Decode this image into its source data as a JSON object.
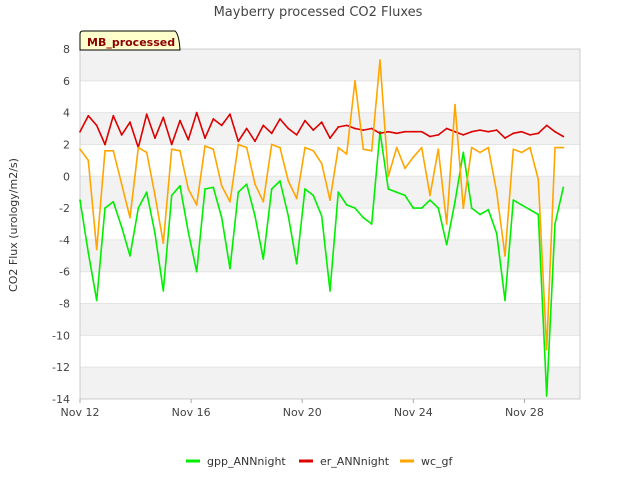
{
  "chart_data": {
    "type": "line",
    "title": "Mayberry processed CO2 Fluxes",
    "xlabel": "",
    "ylabel": "CO2 Flux (urology/m2/s)",
    "tag_label": "MB_processed",
    "xlim": [
      12,
      30
    ],
    "ylim": [
      -14,
      8
    ],
    "x_ticks": [
      {
        "value": 12,
        "label": "Nov 12"
      },
      {
        "value": 16,
        "label": "Nov 16"
      },
      {
        "value": 20,
        "label": "Nov 20"
      },
      {
        "value": 24,
        "label": "Nov 24"
      },
      {
        "value": 28,
        "label": "Nov 28"
      }
    ],
    "y_ticks": [
      8,
      6,
      4,
      2,
      0,
      -2,
      -4,
      -6,
      -8,
      -10,
      -12,
      -14
    ],
    "grid": "horizontal alternating bands",
    "legend_position": "bottom",
    "series": [
      {
        "name": "gpp_ANNnight",
        "color": "#00ee00",
        "x": [
          12.0,
          12.3,
          12.6,
          12.9,
          13.2,
          13.5,
          13.8,
          14.1,
          14.4,
          14.7,
          15.0,
          15.3,
          15.6,
          15.9,
          16.2,
          16.5,
          16.8,
          17.1,
          17.4,
          17.7,
          18.0,
          18.3,
          18.6,
          18.9,
          19.2,
          19.5,
          19.8,
          20.1,
          20.4,
          20.7,
          21.0,
          21.3,
          21.6,
          21.9,
          22.2,
          22.5,
          22.8,
          23.1,
          23.4,
          23.7,
          24.0,
          24.3,
          24.6,
          24.9,
          25.2,
          25.5,
          25.8,
          26.1,
          26.4,
          26.7,
          27.0,
          27.3,
          27.6,
          27.9,
          28.2,
          28.5,
          28.8,
          29.1,
          29.4
        ],
        "y": [
          -1.5,
          -4.8,
          -7.8,
          -2.0,
          -1.6,
          -3.2,
          -5.0,
          -2.0,
          -1.0,
          -3.6,
          -7.2,
          -1.2,
          -0.6,
          -3.5,
          -6.0,
          -0.8,
          -0.7,
          -2.6,
          -5.8,
          -1.0,
          -0.5,
          -2.5,
          -5.2,
          -0.8,
          -0.3,
          -2.5,
          -5.5,
          -0.8,
          -1.2,
          -2.5,
          -7.2,
          -1.0,
          -1.8,
          -2.0,
          -2.6,
          -3.0,
          2.8,
          -0.8,
          -1.0,
          -1.2,
          -2.0,
          -2.0,
          -1.5,
          -2.0,
          -4.3,
          -1.6,
          1.5,
          -2.0,
          -2.4,
          -2.1,
          -3.6,
          -7.8,
          -1.5,
          -1.8,
          -2.1,
          -2.4,
          -13.8,
          -3.0,
          -0.7
        ]
      },
      {
        "name": "er_ANNnight",
        "color": "#dd0000",
        "x": [
          12.0,
          12.3,
          12.6,
          12.9,
          13.2,
          13.5,
          13.8,
          14.1,
          14.4,
          14.7,
          15.0,
          15.3,
          15.6,
          15.9,
          16.2,
          16.5,
          16.8,
          17.1,
          17.4,
          17.7,
          18.0,
          18.3,
          18.6,
          18.9,
          19.2,
          19.5,
          19.8,
          20.1,
          20.4,
          20.7,
          21.0,
          21.3,
          21.6,
          21.9,
          22.2,
          22.5,
          22.8,
          23.1,
          23.4,
          23.7,
          24.0,
          24.3,
          24.6,
          24.9,
          25.2,
          25.5,
          25.8,
          26.1,
          26.4,
          26.7,
          27.0,
          27.3,
          27.6,
          27.9,
          28.2,
          28.5,
          28.8,
          29.1,
          29.4
        ],
        "y": [
          2.8,
          3.8,
          3.2,
          2.0,
          3.8,
          2.6,
          3.4,
          1.8,
          3.9,
          2.4,
          3.7,
          2.0,
          3.5,
          2.3,
          4.0,
          2.4,
          3.6,
          3.2,
          3.9,
          2.2,
          3.0,
          2.2,
          3.2,
          2.7,
          3.6,
          3.0,
          2.6,
          3.5,
          2.9,
          3.4,
          2.4,
          3.1,
          3.2,
          3.0,
          2.9,
          3.0,
          2.7,
          2.8,
          2.7,
          2.8,
          2.8,
          2.8,
          2.5,
          2.6,
          3.0,
          2.8,
          2.6,
          2.8,
          2.9,
          2.8,
          2.9,
          2.4,
          2.7,
          2.8,
          2.6,
          2.7,
          3.2,
          2.8,
          2.5
        ]
      },
      {
        "name": "wc_gf",
        "color": "#ffa500",
        "x": [
          12.0,
          12.3,
          12.6,
          12.9,
          13.2,
          13.5,
          13.8,
          14.1,
          14.4,
          14.7,
          15.0,
          15.3,
          15.6,
          15.9,
          16.2,
          16.5,
          16.8,
          17.1,
          17.4,
          17.7,
          18.0,
          18.3,
          18.6,
          18.9,
          19.2,
          19.5,
          19.8,
          20.1,
          20.4,
          20.7,
          21.0,
          21.3,
          21.6,
          21.9,
          22.2,
          22.5,
          22.8,
          23.1,
          23.4,
          23.7,
          24.0,
          24.3,
          24.6,
          24.9,
          25.2,
          25.5,
          25.8,
          26.1,
          26.4,
          26.7,
          27.0,
          27.3,
          27.6,
          27.9,
          28.2,
          28.5,
          28.8,
          29.1,
          29.4
        ],
        "y": [
          1.7,
          1.0,
          -4.6,
          1.6,
          1.6,
          -0.5,
          -2.6,
          1.8,
          1.5,
          -1.2,
          -4.2,
          1.7,
          1.6,
          -0.8,
          -1.8,
          1.9,
          1.7,
          -0.6,
          -1.6,
          2.0,
          1.8,
          -0.5,
          -1.6,
          2.0,
          1.8,
          -0.3,
          -1.4,
          1.8,
          1.6,
          0.8,
          -1.5,
          1.8,
          1.4,
          6.0,
          1.7,
          1.6,
          7.3,
          0.0,
          1.8,
          0.5,
          1.2,
          1.8,
          -1.2,
          1.7,
          -3.0,
          4.5,
          -2.0,
          1.8,
          1.5,
          1.8,
          -1.0,
          -5.0,
          1.7,
          1.5,
          1.8,
          -0.2,
          -10.9,
          1.8,
          1.8
        ]
      }
    ]
  }
}
